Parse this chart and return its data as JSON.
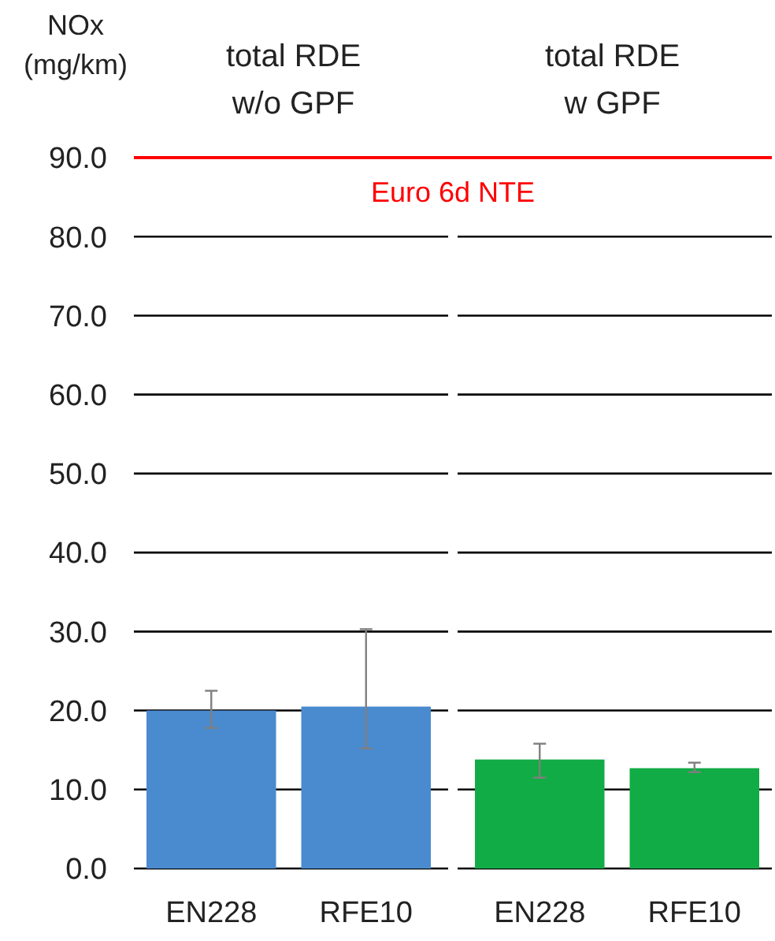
{
  "chart_data": {
    "type": "bar",
    "ylabel": "NOx\n(mg/km)",
    "categories": [
      "EN228",
      "RFE10",
      "EN228",
      "RFE10"
    ],
    "values": [
      20.0,
      20.5,
      13.8,
      12.7
    ],
    "colors": [
      "#4a8bd0",
      "#4a8bd0",
      "#12ac46",
      "#12ac46"
    ],
    "errors": [
      [
        17.8,
        22.5
      ],
      [
        15.2,
        30.3
      ],
      [
        11.5,
        15.8
      ],
      [
        12.2,
        13.4
      ]
    ],
    "ylim": [
      0,
      90
    ],
    "yticks": [
      {
        "value": 0,
        "label": "0.0"
      },
      {
        "value": 10,
        "label": "10.0"
      },
      {
        "value": 20,
        "label": "20.0"
      },
      {
        "value": 30,
        "label": "30.0"
      },
      {
        "value": 40,
        "label": "40.0"
      },
      {
        "value": 50,
        "label": "50.0"
      },
      {
        "value": 60,
        "label": "60.0"
      },
      {
        "value": 70,
        "label": "70.0"
      },
      {
        "value": 80,
        "label": "80.0"
      },
      {
        "value": 90,
        "label": "90.0"
      }
    ],
    "grid": "y",
    "ref_lines": [
      {
        "axis": "y",
        "value": 90,
        "label": "Euro 6d NTE",
        "color": "#ff0000"
      }
    ],
    "annotations": [
      "total RDE\nw/o GPF",
      "total RDE\nw GPF"
    ]
  }
}
